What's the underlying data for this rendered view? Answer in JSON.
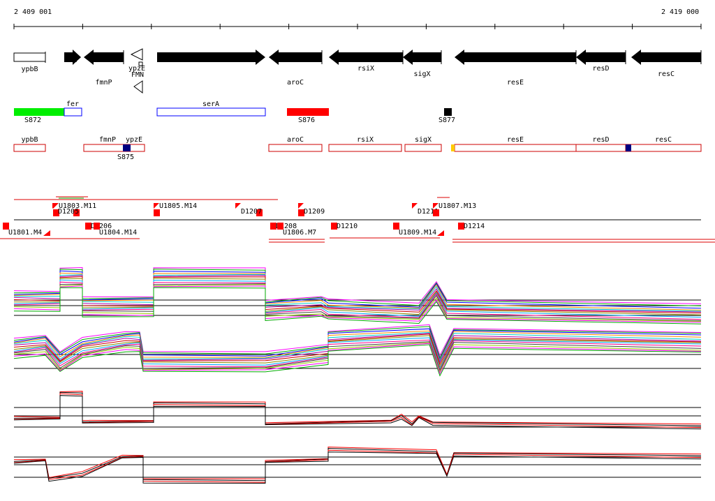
{
  "axis": {
    "start": "2 409 001",
    "end": "2 419 000"
  },
  "genes": [
    {
      "name": "ypbB",
      "strand": "+",
      "style": "outline",
      "label_row": "below"
    },
    {
      "name": "fer",
      "strand": "+",
      "style": "solid",
      "label_row": "below"
    },
    {
      "name": "fmnP",
      "strand": "-",
      "style": "solid",
      "label_row": "below2"
    },
    {
      "name": "ypzE",
      "strand": "-",
      "style": "outline",
      "label_row": "below"
    },
    {
      "name": "serA",
      "strand": "+",
      "style": "solid",
      "label_row": "below"
    },
    {
      "name": "aroC",
      "strand": "-",
      "style": "solid",
      "label_row": "below2"
    },
    {
      "name": "rsiX",
      "strand": "-",
      "style": "solid",
      "label_row": "below"
    },
    {
      "name": "sigX",
      "strand": "-",
      "style": "solid",
      "label_row": "below"
    },
    {
      "name": "resE",
      "strand": "-",
      "style": "solid",
      "label_row": "below2"
    },
    {
      "name": "resD",
      "strand": "-",
      "style": "solid",
      "label_row": "below"
    },
    {
      "name": "resC",
      "strand": "-",
      "style": "solid",
      "label_row": "below"
    }
  ],
  "riboswitch": {
    "label": "FMN"
  },
  "segments_row1": [
    {
      "name": "S872",
      "color": "#00ee00",
      "style": "fill"
    },
    {
      "name": "fer",
      "color": "#0000ff",
      "style": "outline"
    },
    {
      "name": "serA",
      "color": "#0000ff",
      "style": "outline"
    },
    {
      "name": "S876",
      "color": "#ff0000",
      "style": "fill"
    },
    {
      "name": "S877",
      "color": "#000000",
      "style": "fill"
    }
  ],
  "segments_row2": [
    {
      "name": "ypbB",
      "color": "#cc0000"
    },
    {
      "name": "fmnP",
      "color": "#cc0000"
    },
    {
      "name": "ypzE",
      "color": "#cc0000"
    },
    {
      "name": "aroC",
      "color": "#cc0000"
    },
    {
      "name": "rsiX",
      "color": "#cc0000"
    },
    {
      "name": "sigX",
      "color": "#cc0000"
    },
    {
      "name": "resE",
      "color": "#cc0000"
    },
    {
      "name": "resD",
      "color": "#cc0000"
    },
    {
      "name": "resC",
      "color": "#cc0000"
    }
  ],
  "segment_markers": [
    {
      "name": "S875",
      "color": "#000080"
    },
    {
      "name": "marker",
      "color": "#ffcc00"
    },
    {
      "name": "marker",
      "color": "#000080"
    }
  ],
  "transcripts_above": [
    {
      "name": "U1803.M11"
    },
    {
      "name": "D1205"
    },
    {
      "name": "U1805.M14"
    },
    {
      "name": "D1207"
    },
    {
      "name": "D1209"
    },
    {
      "name": "D1211"
    },
    {
      "name": "U1807.M13"
    }
  ],
  "transcripts_below": [
    {
      "name": "U1801.M4"
    },
    {
      "name": "D1206"
    },
    {
      "name": "U1804.M14"
    },
    {
      "name": "D1208"
    },
    {
      "name": "U1806.M7"
    },
    {
      "name": "D1210"
    },
    {
      "name": "U1809.M14"
    },
    {
      "name": "D1214"
    }
  ],
  "colors": {
    "gene": "#000000",
    "segment_outline": "#cc0000",
    "transcript": "#ff0000",
    "profile_main": "#ff0000",
    "profile_alt": "#000000"
  },
  "profiles": [
    {
      "name": "profile-panel-1",
      "style": "multicolor"
    },
    {
      "name": "profile-panel-2",
      "style": "multicolor"
    },
    {
      "name": "profile-panel-3",
      "style": "redblack"
    },
    {
      "name": "profile-panel-4",
      "style": "redblack"
    }
  ]
}
